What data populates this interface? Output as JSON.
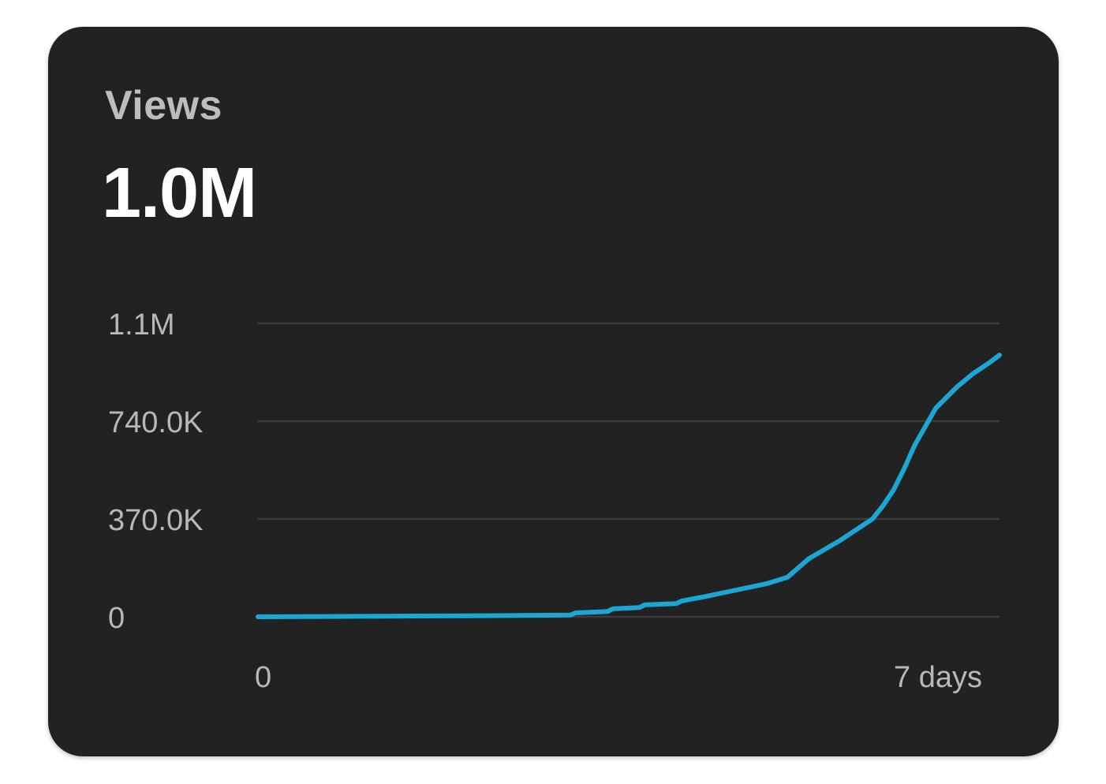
{
  "card": {
    "title": "Views",
    "metric_value": "1.0M"
  },
  "colors": {
    "background": "#222222",
    "line": "#1ba6d3",
    "grid": "#3c3c3c",
    "title": "#bdbdbd",
    "metric": "#ffffff",
    "tick_label": "#b8b8b8"
  },
  "chart_data": {
    "type": "line",
    "title": "",
    "xlabel": "",
    "ylabel": "",
    "xlim": [
      0,
      7
    ],
    "ylim": [
      0,
      1110000
    ],
    "grid": true,
    "y_ticks": [
      {
        "value": 0,
        "label": "0"
      },
      {
        "value": 370000,
        "label": "370.0K"
      },
      {
        "value": 740000,
        "label": "740.0K"
      },
      {
        "value": 1110000,
        "label": "1.1M"
      }
    ],
    "x_ticks": [
      {
        "value": 0,
        "label": "0"
      },
      {
        "value": 7,
        "label": "7 days"
      }
    ],
    "series": [
      {
        "x": [
          0,
          1.5,
          2.0,
          2.5,
          2.95,
          3.0,
          3.3,
          3.35,
          3.6,
          3.65,
          3.95,
          4.0,
          4.2,
          4.5,
          4.8,
          5.0,
          5.2,
          5.5,
          5.65,
          5.8,
          5.9,
          6.0,
          6.1,
          6.2,
          6.4,
          6.6,
          6.75,
          6.9,
          7.0
        ],
        "y": [
          0,
          3000,
          4000,
          5000,
          7000,
          15000,
          20000,
          30000,
          35000,
          45000,
          50000,
          60000,
          75000,
          100000,
          125000,
          150000,
          220000,
          290000,
          330000,
          370000,
          420000,
          480000,
          560000,
          650000,
          790000,
          870000,
          920000,
          960000,
          990000
        ]
      }
    ]
  }
}
